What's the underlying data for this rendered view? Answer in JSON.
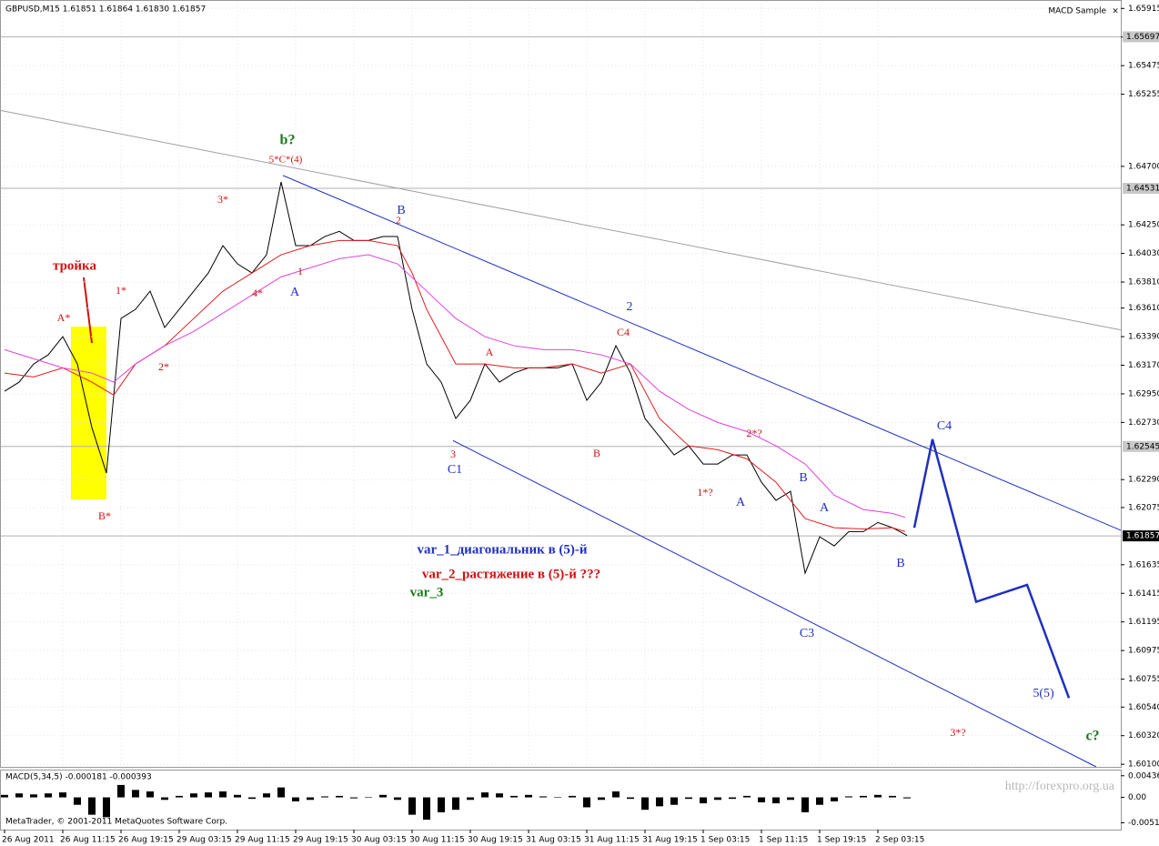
{
  "chart_data": [
    {
      "type": "line",
      "title": "GBPUSD,M15  1.61851 1.61864 1.61830 1.61857",
      "subtitle": "MACD Sample",
      "close_text": "×",
      "footer": "MetaTrader, © 2001-2011 MetaQuotes Software Corp.",
      "watermark": "http://forexpro.org.ua",
      "xlim": [
        -2.5,
        613.5
      ],
      "ylim": [
        1.6008,
        1.6598
      ],
      "grid": true,
      "xticks": [
        {
          "value": 0,
          "label": "26 Aug 2011"
        },
        {
          "value": 32,
          "label": "26 Aug 11:15"
        },
        {
          "value": 64,
          "label": "26 Aug 19:15"
        },
        {
          "value": 96,
          "label": "29 Aug 03:15"
        },
        {
          "value": 128,
          "label": "29 Aug 11:15"
        },
        {
          "value": 160,
          "label": "29 Aug 19:15"
        },
        {
          "value": 192,
          "label": "30 Aug 03:15"
        },
        {
          "value": 224,
          "label": "30 Aug 11:15"
        },
        {
          "value": 256,
          "label": "30 Aug 19:15"
        },
        {
          "value": 288,
          "label": "31 Aug 03:15"
        },
        {
          "value": 320,
          "label": "31 Aug 11:15"
        },
        {
          "value": 352,
          "label": "31 Aug 19:15"
        },
        {
          "value": 384,
          "label": "1 Sep 03:15"
        },
        {
          "value": 416,
          "label": "1 Sep 11:15"
        },
        {
          "value": 448,
          "label": "1 Sep 19:15"
        },
        {
          "value": 480,
          "label": "2 Sep 03:15"
        }
      ],
      "yticks": [
        1.65915,
        1.65695,
        1.65475,
        1.65255,
        {
          "value": 1.647,
          "label": "1.64700"
        },
        {
          "value": 1.6425,
          "label": "1.64250"
        },
        {
          "value": 1.6403,
          "label": "1.64030"
        },
        {
          "value": 1.6381,
          "label": "1.63810"
        },
        {
          "value": 1.6361,
          "label": "1.63610"
        },
        {
          "value": 1.6339,
          "label": "1.63390"
        },
        {
          "value": 1.6317,
          "label": "1.63170"
        },
        {
          "value": 1.6295,
          "label": "1.62950"
        },
        {
          "value": 1.6273,
          "label": "1.62730"
        },
        {
          "value": 1.6229,
          "label": "1.62290"
        },
        1.62075,
        1.61635,
        1.61415,
        1.61195,
        1.60975,
        1.60755,
        {
          "value": 1.6054,
          "label": "1.60540"
        },
        {
          "value": 1.6032,
          "label": "1.60320"
        },
        {
          "value": 1.601,
          "label": "1.60100"
        }
      ],
      "levels": [
        1.65697,
        1.64531,
        1.62545,
        1.61857
      ],
      "series": [
        {
          "color": "#000000",
          "x": [
            0,
            8,
            16,
            24,
            32,
            40,
            48,
            56,
            64,
            72,
            80,
            88,
            96,
            104,
            112,
            120,
            128,
            136,
            144,
            152,
            160,
            168,
            176,
            184,
            192,
            200,
            208,
            216,
            224,
            232,
            240,
            248,
            256,
            264,
            272,
            280,
            288,
            296,
            304,
            312,
            320,
            328,
            336,
            344,
            352,
            360,
            368,
            376,
            384,
            392,
            400,
            408,
            416,
            424,
            432,
            440,
            448,
            456,
            464,
            472,
            480,
            488,
            496
          ],
          "values": [
            1.6297,
            1.6304,
            1.6318,
            1.6325,
            1.6339,
            1.6318,
            1.6269,
            1.6234,
            1.6353,
            1.636,
            1.6374,
            1.6346,
            1.636,
            1.6374,
            1.6388,
            1.6409,
            1.6395,
            1.6388,
            1.6402,
            1.6458,
            1.6409,
            1.6409,
            1.6416,
            1.642,
            1.6413,
            1.6413,
            1.6416,
            1.6416,
            1.636,
            1.6318,
            1.6304,
            1.6276,
            1.629,
            1.6318,
            1.6304,
            1.6311,
            1.6315,
            1.6315,
            1.6315,
            1.6318,
            1.629,
            1.6304,
            1.6332,
            1.6311,
            1.6276,
            1.6262,
            1.6248,
            1.6255,
            1.6241,
            1.6241,
            1.6248,
            1.6248,
            1.6227,
            1.6213,
            1.622,
            1.6157,
            1.6185,
            1.6178,
            1.6189,
            1.6189,
            1.6196,
            1.6192,
            1.6186
          ]
        },
        {
          "color": "#e31a1c",
          "x": [
            0,
            16,
            32,
            48,
            60,
            72,
            88,
            104,
            120,
            136,
            152,
            168,
            184,
            200,
            216,
            224,
            232,
            248,
            264,
            280,
            296,
            312,
            328,
            344,
            360,
            376,
            392,
            408,
            424,
            440,
            456,
            472,
            488,
            495
          ],
          "values": [
            1.6311,
            1.6308,
            1.6315,
            1.6304,
            1.6294,
            1.6318,
            1.6332,
            1.6353,
            1.6374,
            1.6388,
            1.6402,
            1.6409,
            1.6413,
            1.6413,
            1.6409,
            1.6388,
            1.636,
            1.6318,
            1.6318,
            1.6315,
            1.6315,
            1.6318,
            1.6311,
            1.6318,
            1.6276,
            1.6255,
            1.6252,
            1.6245,
            1.6227,
            1.6199,
            1.6192,
            1.6191,
            1.6192,
            1.6189
          ]
        },
        {
          "color": "#e040e0",
          "x": [
            0,
            16,
            32,
            48,
            60,
            72,
            88,
            104,
            120,
            136,
            152,
            168,
            184,
            200,
            216,
            232,
            248,
            264,
            280,
            296,
            312,
            328,
            344,
            360,
            376,
            392,
            408,
            424,
            440,
            456,
            472,
            488,
            495
          ],
          "values": [
            1.6329,
            1.6322,
            1.6315,
            1.6311,
            1.6304,
            1.6318,
            1.6332,
            1.6343,
            1.6357,
            1.6371,
            1.6385,
            1.6392,
            1.6399,
            1.6402,
            1.6395,
            1.6374,
            1.6353,
            1.6339,
            1.6332,
            1.6329,
            1.6329,
            1.6325,
            1.6318,
            1.6297,
            1.6283,
            1.6273,
            1.6266,
            1.6255,
            1.6241,
            1.6217,
            1.6206,
            1.6203,
            1.62
          ]
        },
        {
          "color": "#1f2fbf",
          "x": [
            500,
            510,
            534,
            562,
            585
          ],
          "values": [
            1.6192,
            1.626,
            1.6135,
            1.6148,
            1.6061
          ]
        }
      ],
      "trendlines": [
        {
          "color": "#2030c0",
          "x": [
            153,
            613.5
          ],
          "values": [
            1.6463,
            1.619
          ]
        },
        {
          "color": "#2030c0",
          "x": [
            246.5,
            600
          ],
          "values": [
            1.6259,
            1.6008
          ]
        },
        {
          "color": "#a0a0a0",
          "x": [
            -2,
            614
          ],
          "values": [
            1.6513,
            1.6344
          ]
        }
      ],
      "annotations": [
        {
          "text": "b?",
          "color": "#1a7a1a"
        },
        {
          "text": "5*C*(4)",
          "color": "#d01010"
        },
        {
          "text": "3*",
          "color": "#d01010"
        },
        {
          "text": "1*",
          "color": "#d01010"
        },
        {
          "text": "4*",
          "color": "#d01010"
        },
        {
          "text": "2*",
          "color": "#d01010"
        },
        {
          "text": "1",
          "color": "#d01010"
        },
        {
          "text": "A",
          "color": "#2030c0"
        },
        {
          "text": "B",
          "color": "#2030c0"
        },
        {
          "text": "2",
          "color": "#d01010"
        },
        {
          "text": "A*",
          "color": "#d01010"
        },
        {
          "text": "B*",
          "color": "#d01010"
        },
        {
          "text": "тройка",
          "color": "#d01010"
        },
        {
          "text": "3",
          "color": "#d01010"
        },
        {
          "text": "C1",
          "color": "#2030c0"
        },
        {
          "text": "A",
          "color": "#d01010"
        },
        {
          "text": "C4",
          "color": "#d01010"
        },
        {
          "text": "2",
          "color": "#2030c0"
        },
        {
          "text": "B",
          "color": "#d01010"
        },
        {
          "text": "2*?",
          "color": "#d01010"
        },
        {
          "text": "1*?",
          "color": "#d01010"
        },
        {
          "text": "A",
          "color": "#2030c0"
        },
        {
          "text": "B",
          "color": "#2030c0"
        },
        {
          "text": "A",
          "color": "#2030c0"
        },
        {
          "text": "B",
          "color": "#2030c0"
        },
        {
          "text": "C3",
          "color": "#2030c0"
        },
        {
          "text": "C4",
          "color": "#2030c0"
        },
        {
          "text": "5(5)",
          "color": "#2030c0"
        },
        {
          "text": "3*?",
          "color": "#d01010"
        },
        {
          "text": "c?",
          "color": "#1a7a1a"
        },
        {
          "text": "var_1_диагональник в (5)-й",
          "color": "#2030c0"
        },
        {
          "text": "var_2_растяжение в (5)-й ???",
          "color": "#d01010"
        },
        {
          "text": "var_3",
          "color": "#1a7a1a"
        }
      ]
    },
    {
      "type": "histogram",
      "title": "MACD(5,34,5) -0.000181 -0.000393",
      "color": "#000000",
      "xlim": [
        -2.5,
        613.5
      ],
      "ylim": [
        -0.0065,
        0.0056
      ],
      "yticks": [
        0.00436,
        {
          "value": 0,
          "label": "0.00"
        },
        -0.00512
      ],
      "x": [
        0,
        8,
        16,
        24,
        32,
        40,
        48,
        56,
        64,
        72,
        80,
        88,
        96,
        104,
        112,
        120,
        128,
        136,
        144,
        152,
        160,
        168,
        176,
        184,
        192,
        200,
        208,
        216,
        224,
        232,
        240,
        248,
        256,
        264,
        272,
        280,
        288,
        296,
        304,
        312,
        320,
        328,
        336,
        344,
        352,
        360,
        368,
        376,
        384,
        392,
        400,
        408,
        416,
        424,
        432,
        440,
        448,
        456,
        464,
        472,
        480,
        488,
        496
      ],
      "values": [
        0.0005,
        0.0008,
        0.0006,
        0.0008,
        0.001,
        -0.0015,
        -0.0035,
        -0.004,
        0.0025,
        0.0015,
        0.0012,
        -0.0005,
        0.0003,
        0.0008,
        0.001,
        0.0012,
        0.0005,
        -0.0003,
        0.0008,
        0.002,
        -0.0008,
        -0.0005,
        0.0002,
        0.0003,
        -0.0002,
        0.0001,
        0.0005,
        -0.0005,
        -0.0035,
        -0.0045,
        -0.003,
        -0.0025,
        -0.0005,
        0.001,
        0.0008,
        0.0003,
        0.0005,
        0.0002,
        0.0001,
        0.0003,
        -0.002,
        -0.0005,
        0.0012,
        -0.0003,
        -0.0025,
        -0.0018,
        -0.0015,
        -0.0003,
        -0.0012,
        -0.0005,
        -0.0003,
        0.0003,
        -0.001,
        -0.0012,
        -0.0005,
        -0.003,
        -0.0015,
        -0.0008,
        0.0002,
        0.0003,
        0.0005,
        0.0003,
        -0.0002
      ]
    }
  ]
}
